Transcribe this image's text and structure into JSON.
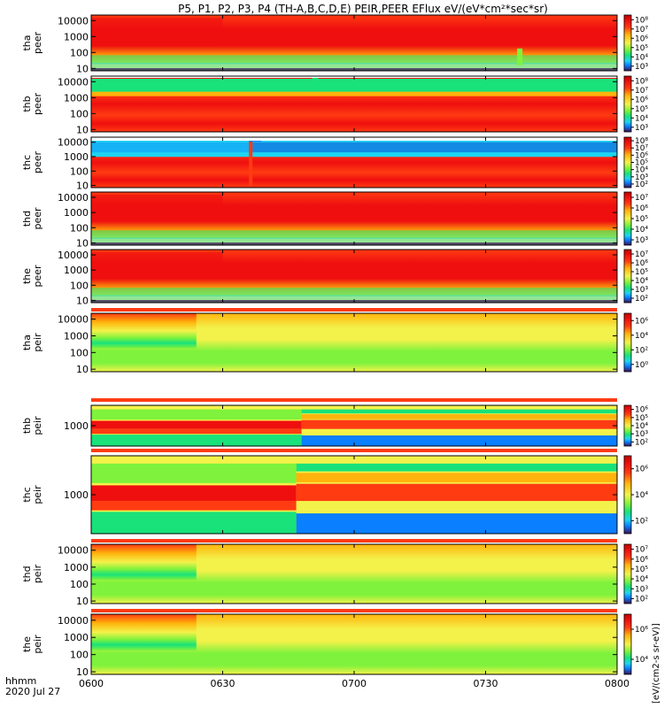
{
  "title": "P5, P1, P2, P3, P4 (TH-A,B,C,D,E) PEIR,PEER EFlux eV/(eV*cm²*sec*sr)",
  "x_axis": {
    "label_line1": "hhmm",
    "label_line2": "2020 Jul 27",
    "ticks": [
      "0600",
      "0630",
      "0700",
      "0730",
      "0800"
    ]
  },
  "units_label": "[eV/(cm2-s sr-eV)]",
  "colorscale": [
    "#3a0f57",
    "#0000cc",
    "#0a7fff",
    "#1fd4f0",
    "#19e27a",
    "#7ef23c",
    "#f3f24a",
    "#ffb30c",
    "#ff3b12",
    "#ef0f0f",
    "#c00000"
  ],
  "chart_data": [
    {
      "type": "heatmap",
      "panel": "tha",
      "label": [
        "tha",
        "peer"
      ],
      "y_ticks": [
        "10",
        "100",
        "1000",
        "10000"
      ],
      "y_scale": "log",
      "cbar_ticks": [
        "10³",
        "10⁴",
        "10⁵",
        "10⁶",
        "10⁷",
        "10⁸"
      ],
      "x_range": [
        "0600",
        "0800"
      ],
      "color_scale": "log"
    },
    {
      "type": "heatmap",
      "panel": "thb",
      "label": [
        "thb",
        "peer"
      ],
      "y_ticks": [
        "10",
        "100",
        "1000",
        "10000"
      ],
      "y_scale": "log",
      "cbar_ticks": [
        "10³",
        "10⁴",
        "10⁵",
        "10⁶",
        "10⁷",
        "10⁸"
      ],
      "x_range": [
        "0600",
        "0800"
      ],
      "color_scale": "log"
    },
    {
      "type": "heatmap",
      "panel": "thc",
      "label": [
        "thc",
        "peer"
      ],
      "y_ticks": [
        "10",
        "100",
        "1000",
        "10000"
      ],
      "y_scale": "log",
      "cbar_ticks": [
        "10²",
        "10³",
        "10⁴",
        "10⁵",
        "10⁶",
        "10⁷",
        "10⁸"
      ],
      "x_range": [
        "0600",
        "0800"
      ],
      "color_scale": "log"
    },
    {
      "type": "heatmap",
      "panel": "thd",
      "label": [
        "thd",
        "peer"
      ],
      "y_ticks": [
        "10",
        "100",
        "1000",
        "10000"
      ],
      "y_scale": "log",
      "cbar_ticks": [
        "10³",
        "10⁴",
        "10⁵",
        "10⁶",
        "10⁷"
      ],
      "x_range": [
        "0600",
        "0800"
      ],
      "color_scale": "log"
    },
    {
      "type": "heatmap",
      "panel": "the",
      "label": [
        "the",
        "peer"
      ],
      "y_ticks": [
        "10",
        "100",
        "1000",
        "10000"
      ],
      "y_scale": "log",
      "cbar_ticks": [
        "10²",
        "10³",
        "10⁴",
        "10⁵",
        "10⁶",
        "10⁷"
      ],
      "x_range": [
        "0600",
        "0800"
      ],
      "color_scale": "log"
    },
    {
      "type": "heatmap",
      "panel": "tha",
      "label": [
        "tha",
        "peir"
      ],
      "y_ticks": [
        "10",
        "100",
        "1000",
        "10000"
      ],
      "y_scale": "log",
      "cbar_ticks": [
        "10⁰",
        "10²",
        "10⁴",
        "10⁶"
      ],
      "x_range": [
        "0600",
        "0800"
      ],
      "color_scale": "log"
    },
    {
      "type": "heatmap",
      "panel": "thb",
      "label": [
        "thb",
        "peir"
      ],
      "y_ticks": [
        "1000"
      ],
      "y_scale": "log",
      "cbar_ticks": [
        "10²",
        "10³",
        "10⁴",
        "10⁵",
        "10⁶"
      ],
      "x_range": [
        "0600",
        "0800"
      ],
      "color_scale": "log"
    },
    {
      "type": "heatmap",
      "panel": "thc",
      "label": [
        "thc",
        "peir"
      ],
      "y_ticks": [
        "1000"
      ],
      "y_scale": "log",
      "cbar_ticks": [
        "10²",
        "10⁴",
        "10⁶"
      ],
      "x_range": [
        "0600",
        "0800"
      ],
      "color_scale": "log"
    },
    {
      "type": "heatmap",
      "panel": "thd",
      "label": [
        "thd",
        "peir"
      ],
      "y_ticks": [
        "10",
        "100",
        "1000",
        "10000"
      ],
      "y_scale": "log",
      "cbar_ticks": [
        "10²",
        "10³",
        "10⁴",
        "10⁵",
        "10⁶",
        "10⁷"
      ],
      "x_range": [
        "0600",
        "0800"
      ],
      "color_scale": "log"
    },
    {
      "type": "heatmap",
      "panel": "the",
      "label": [
        "the",
        "peir"
      ],
      "y_ticks": [
        "10",
        "100",
        "1000",
        "10000"
      ],
      "y_scale": "log",
      "cbar_ticks": [
        "10⁴",
        "10⁶"
      ],
      "x_range": [
        "0600",
        "0800"
      ],
      "color_scale": "log"
    }
  ]
}
